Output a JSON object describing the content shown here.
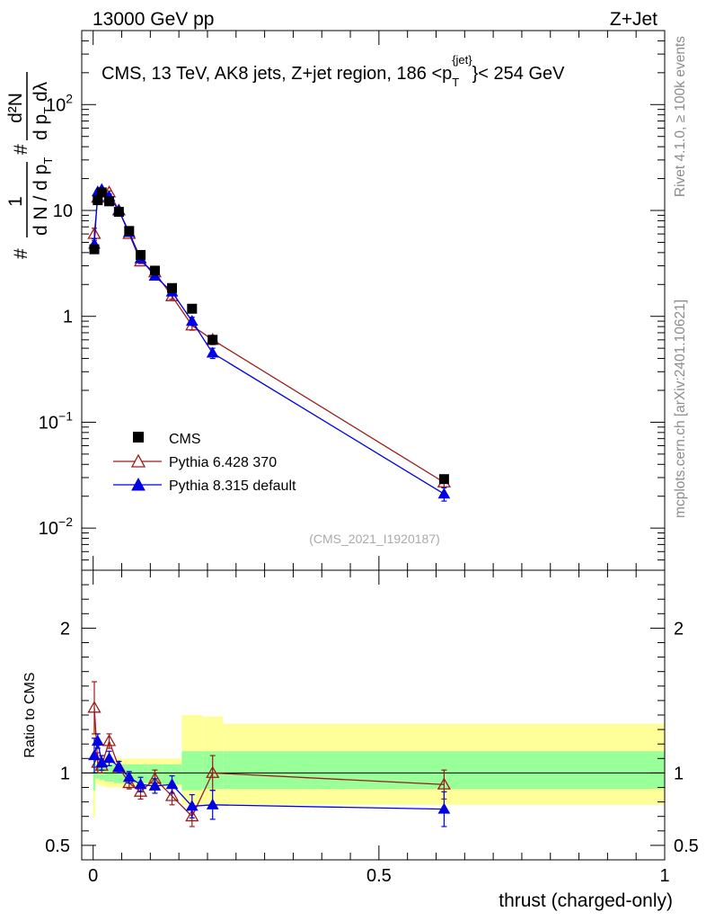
{
  "header": {
    "left": "13000 GeV pp",
    "right": "Z+Jet"
  },
  "side_labels": {
    "rivet": "Rivet 4.1.0, ≥ 100k events",
    "mcplots": "mcplots.cern.ch [arXiv:2401.10621]"
  },
  "chart_data": [
    {
      "type": "scatter",
      "title": "CMS, 13 TeV, AK8 jets, Z+jet region, 186 < p_T^{jet} < 254 GeV",
      "title_parts": {
        "main": "CMS, 13 TeV, AK8 jets, Z+jet region, 186 <p",
        "sub": "T",
        "sup": "{jet}",
        "tail": "}< 254 GeV"
      },
      "ylabel": "1/(dN/dp_T) d^2N/(dp_T dlambda)",
      "ylabel_parts": {
        "left_hash": "#",
        "left_num": "1",
        "left_den": "d N / d p",
        "left_den_sub": "T",
        "right_hash": "#",
        "right_num": "d²N",
        "right_den": "d p",
        "right_den_sub": "T",
        "right_den_tail": " dλ"
      },
      "yscale": "log",
      "ylim": [
        0.004,
        500
      ],
      "xlim": [
        -0.02,
        1.0
      ],
      "y_ticks": [
        {
          "value": 0.01,
          "label": "10",
          "exp": "−2"
        },
        {
          "value": 0.1,
          "label": "10",
          "exp": "−1"
        },
        {
          "value": 1,
          "label": "1",
          "exp": ""
        },
        {
          "value": 10,
          "label": "10",
          "exp": ""
        },
        {
          "value": 100,
          "label": "10",
          "exp": "2"
        }
      ],
      "watermark": "(CMS_2021_I1920187)",
      "legend_position": "lower-left",
      "series": [
        {
          "name": "CMS",
          "color": "#000000",
          "marker": "square",
          "x": [
            0.002,
            0.008,
            0.015,
            0.028,
            0.045,
            0.063,
            0.083,
            0.108,
            0.138,
            0.173,
            0.209,
            0.614
          ],
          "y": [
            4.3,
            12.5,
            14.8,
            12.2,
            9.7,
            6.4,
            3.8,
            2.7,
            1.85,
            1.18,
            0.6,
            0.029
          ],
          "y_err": [
            0,
            0,
            0,
            0,
            0,
            0,
            0,
            0,
            0,
            0,
            0,
            0
          ]
        },
        {
          "name": "Pythia 6.428 370",
          "color": "#9b1c1c",
          "marker": "open-triangle",
          "x": [
            0.002,
            0.008,
            0.015,
            0.028,
            0.045,
            0.063,
            0.083,
            0.108,
            0.138,
            0.173,
            0.209,
            0.614
          ],
          "y": [
            6.0,
            13.2,
            14.9,
            14.8,
            10.0,
            6.0,
            3.3,
            2.6,
            1.55,
            0.82,
            0.6,
            0.027
          ],
          "y_err": [
            0.8,
            0.6,
            0.5,
            0.5,
            0.3,
            0.2,
            0.15,
            0.15,
            0.1,
            0.08,
            0.06,
            0.003
          ]
        },
        {
          "name": "Pythia 8.315 default",
          "color": "#0000e6",
          "marker": "filled-triangle",
          "x": [
            0.002,
            0.008,
            0.015,
            0.028,
            0.045,
            0.063,
            0.083,
            0.108,
            0.138,
            0.173,
            0.209,
            0.614
          ],
          "y": [
            4.8,
            15.0,
            15.8,
            13.5,
            10.0,
            6.2,
            3.5,
            2.4,
            1.7,
            0.9,
            0.45,
            0.021
          ],
          "y_err": [
            0.6,
            0.6,
            0.5,
            0.5,
            0.3,
            0.2,
            0.15,
            0.12,
            0.1,
            0.08,
            0.05,
            0.003
          ]
        }
      ]
    },
    {
      "type": "scatter",
      "title": "",
      "xlabel": "thrust (charged-only)",
      "ylabel": "Ratio to CMS",
      "ylim": [
        0.4,
        2.4
      ],
      "xlim": [
        -0.02,
        1.0
      ],
      "x_ticks": [
        {
          "value": 0,
          "label": "0"
        },
        {
          "value": 0.5,
          "label": "0.5"
        },
        {
          "value": 1,
          "label": "1"
        }
      ],
      "y_ticks": [
        {
          "value": 0.5,
          "label": "0.5"
        },
        {
          "value": 1,
          "label": "1"
        },
        {
          "value": 2,
          "label": "2"
        }
      ],
      "bands": {
        "edges": [
          0.0,
          0.004,
          0.011,
          0.02,
          0.036,
          0.054,
          0.072,
          0.095,
          0.121,
          0.155,
          0.191,
          0.227,
          1.0
        ],
        "yellow": [
          [
            0.7,
            1.32
          ],
          [
            0.92,
            1.12
          ],
          [
            0.91,
            1.12
          ],
          [
            0.9,
            1.1
          ],
          [
            0.9,
            1.1
          ],
          [
            0.9,
            1.1
          ],
          [
            0.9,
            1.1
          ],
          [
            0.9,
            1.1
          ],
          [
            0.9,
            1.1
          ],
          [
            0.78,
            1.4
          ],
          [
            0.78,
            1.39
          ],
          [
            0.78,
            1.34
          ]
        ],
        "green": [
          [
            0.88,
            1.12
          ],
          [
            0.96,
            1.06
          ],
          [
            0.95,
            1.06
          ],
          [
            0.94,
            1.06
          ],
          [
            0.93,
            1.06
          ],
          [
            0.93,
            1.06
          ],
          [
            0.93,
            1.06
          ],
          [
            0.93,
            1.06
          ],
          [
            0.92,
            1.06
          ],
          [
            0.88,
            1.15
          ],
          [
            0.89,
            1.15
          ],
          [
            0.89,
            1.15
          ]
        ],
        "yellow_color": "#ffff99",
        "green_color": "#99ff99"
      },
      "series": [
        {
          "name": "Pythia 6.428 370",
          "color": "#9b1c1c",
          "marker": "open-triangle",
          "x": [
            0.002,
            0.008,
            0.015,
            0.028,
            0.045,
            0.063,
            0.083,
            0.108,
            0.138,
            0.173,
            0.209,
            0.614
          ],
          "y": [
            1.45,
            1.07,
            1.05,
            1.22,
            1.04,
            0.93,
            0.87,
            0.96,
            0.84,
            0.7,
            1.0,
            0.92
          ],
          "y_err": [
            0.18,
            0.07,
            0.05,
            0.05,
            0.04,
            0.04,
            0.05,
            0.06,
            0.06,
            0.07,
            0.12,
            0.1
          ]
        },
        {
          "name": "Pythia 8.315 default",
          "color": "#0000e6",
          "marker": "filled-triangle",
          "x": [
            0.002,
            0.008,
            0.015,
            0.028,
            0.045,
            0.063,
            0.083,
            0.108,
            0.138,
            0.173,
            0.209,
            0.614
          ],
          "y": [
            1.12,
            1.22,
            1.07,
            1.1,
            1.04,
            0.97,
            0.92,
            0.91,
            0.92,
            0.77,
            0.78,
            0.75
          ],
          "y_err": [
            0.12,
            0.05,
            0.05,
            0.05,
            0.04,
            0.04,
            0.05,
            0.05,
            0.06,
            0.08,
            0.1,
            0.12
          ]
        }
      ]
    }
  ]
}
